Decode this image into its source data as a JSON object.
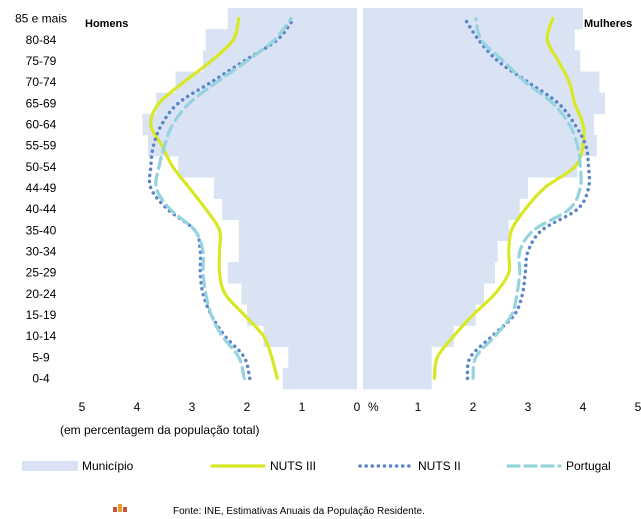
{
  "chart_data": {
    "type": "pyramid",
    "units_label": "%",
    "note": "(em percentagem da população total)",
    "source": "Fonte: INE, Estimativas Anuais da População Residente.",
    "x_ticks_left": [
      "5",
      "4",
      "3",
      "2",
      "1",
      "0"
    ],
    "x_ticks_right": [
      "1",
      "2",
      "3",
      "4",
      "5"
    ],
    "xlim": [
      0,
      5
    ],
    "age_groups": [
      "0-4",
      "5-9",
      "10-14",
      "15-19",
      "20-24",
      "25-29",
      "30-34",
      "35-40",
      "40-44",
      "44-49",
      "50-54",
      "55-59",
      "60-64",
      "65-69",
      "70-74",
      "75-79",
      "80-84",
      "85 e mais"
    ],
    "panels": [
      {
        "title": "Homens",
        "side": "left",
        "series": [
          {
            "name": "Município",
            "style": "bar",
            "color": "#d9e3f3",
            "values": [
              1.35,
              1.25,
              1.7,
              2.0,
              2.1,
              2.35,
              2.15,
              2.15,
              2.45,
              2.6,
              3.25,
              3.8,
              3.9,
              3.65,
              3.3,
              2.8,
              2.75,
              2.35
            ]
          },
          {
            "name": "NUTS III",
            "style": "solid",
            "color": "#d8e825",
            "values": [
              1.45,
              1.55,
              1.7,
              2.05,
              2.4,
              2.5,
              2.5,
              2.5,
              2.75,
              3.05,
              3.35,
              3.55,
              3.75,
              3.6,
              3.15,
              2.65,
              2.25,
              2.15
            ]
          },
          {
            "name": "NUTS II",
            "style": "dotted",
            "color": "#5b86c8",
            "values": [
              1.95,
              2.05,
              2.4,
              2.65,
              2.8,
              2.85,
              2.85,
              2.95,
              3.45,
              3.75,
              3.75,
              3.7,
              3.55,
              3.25,
              2.65,
              2.05,
              1.45,
              1.15
            ]
          },
          {
            "name": "Portugal",
            "style": "dashed",
            "color": "#95d3df",
            "values": [
              2.05,
              2.15,
              2.45,
              2.65,
              2.75,
              2.8,
              2.8,
              2.95,
              3.4,
              3.65,
              3.6,
              3.5,
              3.35,
              3.05,
              2.55,
              2.0,
              1.5,
              1.2
            ]
          }
        ]
      },
      {
        "title": "Mulheres",
        "side": "right",
        "series": [
          {
            "name": "Município",
            "style": "bar",
            "color": "#d9e3f3",
            "values": [
              1.25,
              1.25,
              1.65,
              2.05,
              2.2,
              2.4,
              2.45,
              2.65,
              2.85,
              3.0,
              3.9,
              4.25,
              4.2,
              4.4,
              4.3,
              3.95,
              3.85,
              4.0
            ]
          },
          {
            "name": "NUTS III",
            "style": "solid",
            "color": "#d8e825",
            "values": [
              1.3,
              1.35,
              1.65,
              2.0,
              2.4,
              2.65,
              2.65,
              2.7,
              2.95,
              3.3,
              3.85,
              4.0,
              4.0,
              3.85,
              3.75,
              3.55,
              3.35,
              3.45
            ]
          },
          {
            "name": "NUTS II",
            "style": "dotted",
            "color": "#5b86c8",
            "values": [
              1.9,
              1.95,
              2.35,
              2.75,
              2.9,
              2.95,
              3.0,
              3.25,
              3.9,
              4.1,
              4.1,
              4.05,
              3.85,
              3.55,
              3.0,
              2.45,
              2.1,
              1.85
            ]
          },
          {
            "name": "Portugal",
            "style": "dashed",
            "color": "#95d3df",
            "values": [
              2.0,
              2.05,
              2.4,
              2.7,
              2.8,
              2.85,
              2.85,
              3.1,
              3.75,
              3.95,
              3.95,
              3.9,
              3.75,
              3.45,
              2.95,
              2.55,
              2.15,
              2.05
            ]
          }
        ]
      }
    ],
    "legend": [
      {
        "name": "Município",
        "style": "bar",
        "color": "#d9e3f3"
      },
      {
        "name": "NUTS III",
        "style": "solid",
        "color": "#d8e825"
      },
      {
        "name": "NUTS II",
        "style": "dotted",
        "color": "#5b86c8"
      },
      {
        "name": "Portugal",
        "style": "dashed",
        "color": "#95d3df"
      }
    ]
  }
}
